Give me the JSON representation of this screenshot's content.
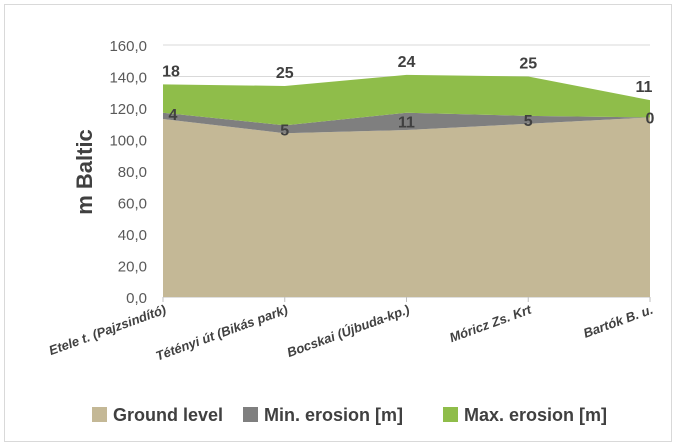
{
  "chart_data": {
    "type": "area",
    "stacked": true,
    "categories": [
      "Etele t. (Pajzsindító)",
      "Tétényi út (Bikás park)",
      "Bocskai (Újbuda-kp.)",
      "Móricz Zs. Krt",
      "Bartók B. u."
    ],
    "series": [
      {
        "name": "Ground level",
        "values": [
          113,
          104,
          106,
          110,
          114
        ],
        "color": "#c4b896"
      },
      {
        "name": "Min. erosion [m]",
        "values": [
          4,
          5,
          11,
          5,
          0
        ],
        "color": "#7f7f7f"
      },
      {
        "name": "Max. erosion [m]",
        "values": [
          18,
          25,
          24,
          25,
          11
        ],
        "color": "#8fbd4a"
      }
    ],
    "data_labels": {
      "min": [
        "4",
        "5",
        "11",
        "5",
        "0"
      ],
      "max": [
        "18",
        "25",
        "24",
        "25",
        "11"
      ]
    },
    "ylabel": "m Baltic",
    "xlabel": "",
    "title": "",
    "ylim": [
      0,
      160
    ],
    "yticks": [
      "0,0",
      "20,0",
      "40,0",
      "60,0",
      "80,0",
      "100,0",
      "120,0",
      "140,0",
      "160,0"
    ],
    "grid": true,
    "legend": "bottom"
  }
}
